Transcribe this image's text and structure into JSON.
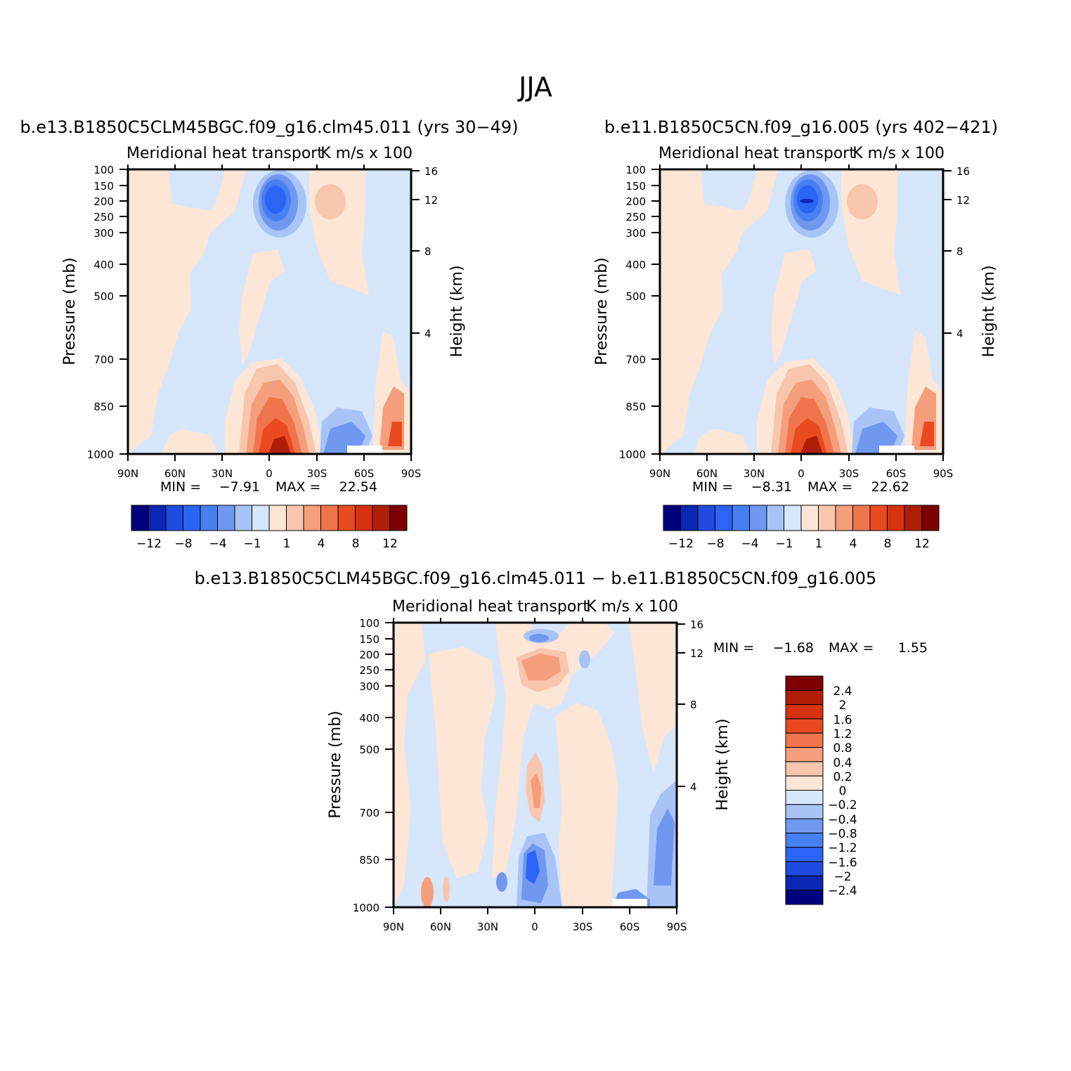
{
  "figure": {
    "title": "JJA"
  },
  "chart_data": [
    {
      "type": "heatmap",
      "title": "b.e13.B1850C5CLM45BGC.f09_g16.clm45.011 (yrs 30−49)",
      "subtitle_left": "Meridional heat transport",
      "subtitle_right": "K m/s x 100",
      "ylabel": "Pressure (mb)",
      "ylabel_right": "Height (km)",
      "x_ticks": [
        "90N",
        "60N",
        "30N",
        "0",
        "30S",
        "60S",
        "90S"
      ],
      "y_ticks": [
        "100",
        "150",
        "200",
        "250",
        "300",
        "400",
        "500",
        "700",
        "850",
        "1000"
      ],
      "y_ticks_right": [
        "16",
        "12",
        "8",
        "4"
      ],
      "min_label": "MIN =",
      "min_value": "−7.91",
      "max_label": "MAX =",
      "max_value": "22.54",
      "colorbar_levels": [
        -12,
        -10,
        -8,
        -6,
        -4,
        -2,
        -1,
        0,
        1,
        2,
        4,
        6,
        8,
        10,
        12
      ],
      "colorbar_labels": [
        "−12",
        "−8",
        "−4",
        "−1",
        "1",
        "4",
        "8",
        "12"
      ]
    },
    {
      "type": "heatmap",
      "title": "b.e11.B1850C5CN.f09_g16.005 (yrs 402−421)",
      "subtitle_left": "Meridional heat transport",
      "subtitle_right": "K m/s x 100",
      "ylabel": "Pressure (mb)",
      "ylabel_right": "Height (km)",
      "x_ticks": [
        "90N",
        "60N",
        "30N",
        "0",
        "30S",
        "60S",
        "90S"
      ],
      "y_ticks": [
        "100",
        "150",
        "200",
        "250",
        "300",
        "400",
        "500",
        "700",
        "850",
        "1000"
      ],
      "y_ticks_right": [
        "16",
        "12",
        "8",
        "4"
      ],
      "min_label": "MIN =",
      "min_value": "−8.31",
      "max_label": "MAX =",
      "max_value": "22.62",
      "colorbar_levels": [
        -12,
        -10,
        -8,
        -6,
        -4,
        -2,
        -1,
        0,
        1,
        2,
        4,
        6,
        8,
        10,
        12
      ],
      "colorbar_labels": [
        "−12",
        "−8",
        "−4",
        "−1",
        "1",
        "4",
        "8",
        "12"
      ]
    },
    {
      "type": "heatmap",
      "title": "b.e13.B1850C5CLM45BGC.f09_g16.clm45.011 − b.e11.B1850C5CN.f09_g16.005",
      "subtitle_left": "Meridional heat transport",
      "subtitle_right": "K m/s x 100",
      "ylabel": "Pressure (mb)",
      "ylabel_right": "Height (km)",
      "x_ticks": [
        "90N",
        "60N",
        "30N",
        "0",
        "30S",
        "60S",
        "90S"
      ],
      "y_ticks": [
        "100",
        "150",
        "200",
        "250",
        "300",
        "400",
        "500",
        "700",
        "850",
        "1000"
      ],
      "y_ticks_right": [
        "16",
        "12",
        "8",
        "4"
      ],
      "min_label": "MIN =",
      "min_value": "−1.68",
      "max_label": "MAX =",
      "max_value": "1.55",
      "colorbar_levels": [
        2.4,
        2,
        1.6,
        1.2,
        0.8,
        0.4,
        0.2,
        0,
        -0.2,
        -0.4,
        -0.8,
        -1.2,
        -1.6,
        -2,
        -2.4
      ],
      "colorbar_labels": [
        "2.4",
        "2",
        "1.6",
        "1.2",
        "0.8",
        "0.4",
        "0.2",
        "0",
        "−0.2",
        "−0.4",
        "−0.8",
        "−1.2",
        "−1.6",
        "−2",
        "−2.4"
      ]
    }
  ],
  "colors": {
    "palette": [
      "#00007f",
      "#0a28b4",
      "#1f4be0",
      "#2c64f5",
      "#4780f0",
      "#7098f0",
      "#a8c4f7",
      "#d6e6fb",
      "#fde6d6",
      "#f8c6ad",
      "#f59e7c",
      "#f0754d",
      "#e94a20",
      "#d7320f",
      "#b01e08",
      "#7e0000"
    ]
  }
}
